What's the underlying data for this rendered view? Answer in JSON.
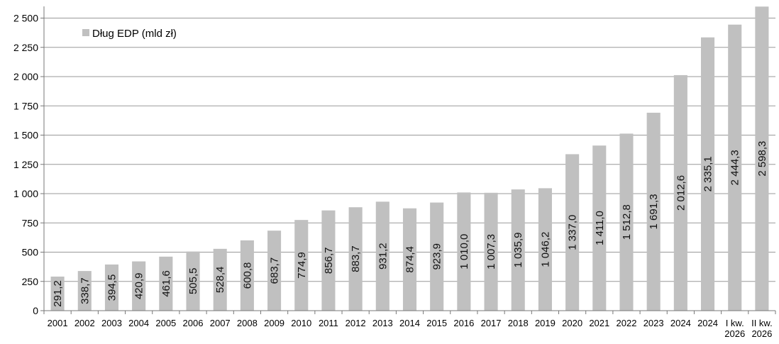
{
  "chart_data": {
    "type": "bar",
    "title": "",
    "xlabel": "",
    "ylabel": "",
    "ylim": [
      0,
      2600
    ],
    "yticks": [
      0,
      250,
      500,
      750,
      1000,
      1250,
      1500,
      1750,
      2000,
      2250,
      2500
    ],
    "ytick_labels": [
      "0",
      "250",
      "500",
      "750",
      "1 000",
      "1 250",
      "1 500",
      "1 750",
      "2 000",
      "2 250",
      "2 500"
    ],
    "grid": true,
    "legend": {
      "position": "top-left",
      "entries": [
        "Dług EDP (mld zł)"
      ]
    },
    "bar_color": "#c0c0c0",
    "grid_color": "#999999",
    "categories": [
      [
        "2001"
      ],
      [
        "2002"
      ],
      [
        "2003"
      ],
      [
        "2004"
      ],
      [
        "2005"
      ],
      [
        "2006"
      ],
      [
        "2007"
      ],
      [
        "2008"
      ],
      [
        "2009"
      ],
      [
        "2010"
      ],
      [
        "2011"
      ],
      [
        "2012"
      ],
      [
        "2013"
      ],
      [
        "2014"
      ],
      [
        "2015"
      ],
      [
        "2016"
      ],
      [
        "2017"
      ],
      [
        "2018"
      ],
      [
        "2019"
      ],
      [
        "2020"
      ],
      [
        "2021"
      ],
      [
        "2022"
      ],
      [
        "2023"
      ],
      [
        "2024"
      ],
      [
        "2024"
      ],
      [
        "I kw.",
        "2026"
      ],
      [
        "II kw.",
        "2026"
      ]
    ],
    "series": [
      {
        "name": "Dług EDP (mld zł)",
        "values": [
          291.2,
          338.7,
          394.5,
          420.9,
          461.6,
          505.5,
          528.4,
          600.8,
          683.7,
          774.9,
          856.7,
          883.7,
          931.2,
          874.4,
          923.9,
          1010.0,
          1007.3,
          1035.9,
          1046.2,
          1337.0,
          1411.0,
          1512.8,
          1691.3,
          2012.6,
          2335.1,
          2444.3,
          2598.3
        ],
        "labels": [
          "291,2",
          "338,7",
          "394,5",
          "420,9",
          "461,6",
          "505,5",
          "528,4",
          "600,8",
          "683,7",
          "774,9",
          "856,7",
          "883,7",
          "931,2",
          "874,4",
          "923,9",
          "1 010,0",
          "1 007,3",
          "1 035,9",
          "1 046,2",
          "1 337,0",
          "1 411,0",
          "1 512,8",
          "1 691,3",
          "2 012,6",
          "2 335,1",
          "2 444,3",
          "2 598,3"
        ]
      }
    ]
  }
}
